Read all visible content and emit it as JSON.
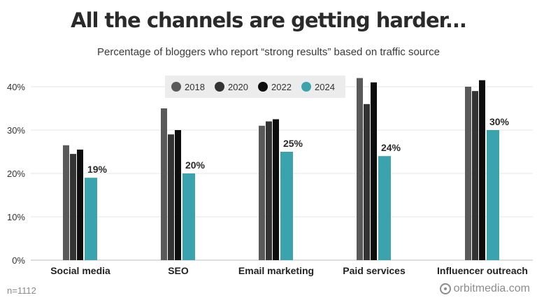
{
  "chart_data": {
    "type": "bar",
    "title": "All the channels are getting harder...",
    "subtitle": "Percentage of bloggers who report “strong results” based on traffic source",
    "categories": [
      "Social media",
      "SEO",
      "Email marketing",
      "Paid services",
      "Influencer outreach"
    ],
    "series": [
      {
        "name": "2018",
        "color": "#5a5a5a",
        "values": [
          26.5,
          35,
          31,
          42,
          40
        ]
      },
      {
        "name": "2020",
        "color": "#333333",
        "values": [
          24.5,
          29,
          32,
          36,
          39
        ]
      },
      {
        "name": "2022",
        "color": "#0d0d0d",
        "values": [
          25.5,
          30,
          32.5,
          41,
          41.5
        ]
      },
      {
        "name": "2024",
        "color": "#3ba3ad",
        "values": [
          19,
          20,
          25,
          24,
          30
        ]
      }
    ],
    "data_labels": [
      "19%",
      "20%",
      "25%",
      "24%",
      "30%"
    ],
    "yticks": [
      "0%",
      "10%",
      "20%",
      "30%",
      "40%"
    ],
    "ylim": [
      0,
      45
    ],
    "grid": true,
    "legend_position": "top-center"
  },
  "footer": {
    "note": "n=1112",
    "brand": "orbitmedia.com"
  }
}
